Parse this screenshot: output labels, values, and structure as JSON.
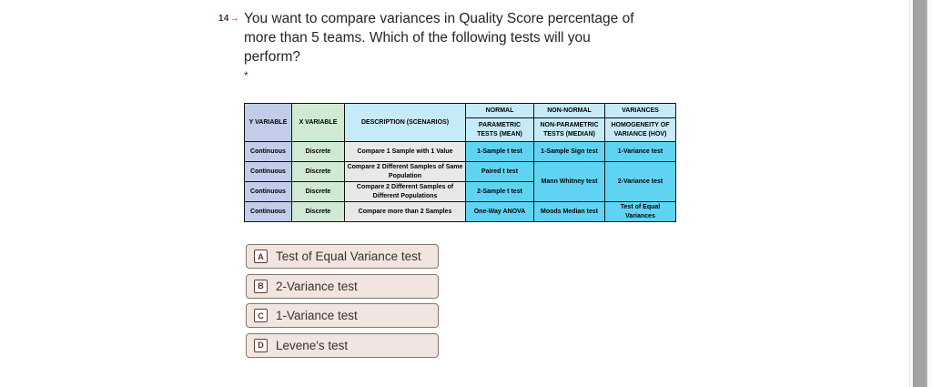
{
  "question": {
    "number": "14",
    "arrow": "→",
    "lines": [
      "You want to compare variances in Quality Score percentage of",
      "more than 5 teams. Which of the following tests will you",
      "perform?"
    ],
    "required_marker": "*"
  },
  "table": {
    "col_headers": [
      "Y VARIABLE",
      "X VARIABLE",
      "DESCRIPTION (SCENARIOS)"
    ],
    "group_headers": [
      "NORMAL",
      "NON-NORMAL",
      "VARIANCES"
    ],
    "sub_headers": [
      "PARAMETRIC TESTS (MEAN)",
      "NON-PARAMETRIC TESTS (MEDIAN)",
      "HOMOGENEITY OF VARIANCE (HOV)"
    ],
    "rows": [
      {
        "y": "Continuous",
        "x": "Discrete",
        "desc": "Compare 1 Sample with 1 Value",
        "parametric": "1-Sample t test",
        "nonparametric": "1-Sample Sign test",
        "variance": "1-Variance test"
      },
      {
        "y": "Continuous",
        "x": "Discrete",
        "desc": "Compare 2 Different Samples of Same Population",
        "parametric": "Paired t test",
        "nonparametric": "Mann Whitney test",
        "variance": "2-Variance test"
      },
      {
        "y": "Continuous",
        "x": "Discrete",
        "desc": "Compare 2 Different Samples of Different Populations",
        "parametric": "2-Sample t test"
      },
      {
        "y": "Continuous",
        "x": "Discrete",
        "desc": "Compare more than 2 Samples",
        "parametric": "One-Way ANOVA",
        "nonparametric": "Moods Median test",
        "variance": "Test of Equal Variances"
      }
    ]
  },
  "options": [
    {
      "letter": "A",
      "label": "Test of Equal Variance test"
    },
    {
      "letter": "B",
      "label": "2-Variance test"
    },
    {
      "letter": "C",
      "label": "1-Variance test"
    },
    {
      "letter": "D",
      "label": "Levene's test"
    }
  ],
  "colors": {
    "table_header_lavender": "#c2cdea",
    "table_header_green": "#cfe9d2",
    "table_header_blue": "#c6eaf8",
    "table_body_gray": "#e8e8e8",
    "table_body_cyan": "#5fd4f2",
    "option_background": "#f2e4de",
    "option_border": "#857770",
    "option_letter": "#7a1f1f",
    "question_number": "#55282a",
    "scrollbar_thumb": "#a3a3a3"
  }
}
